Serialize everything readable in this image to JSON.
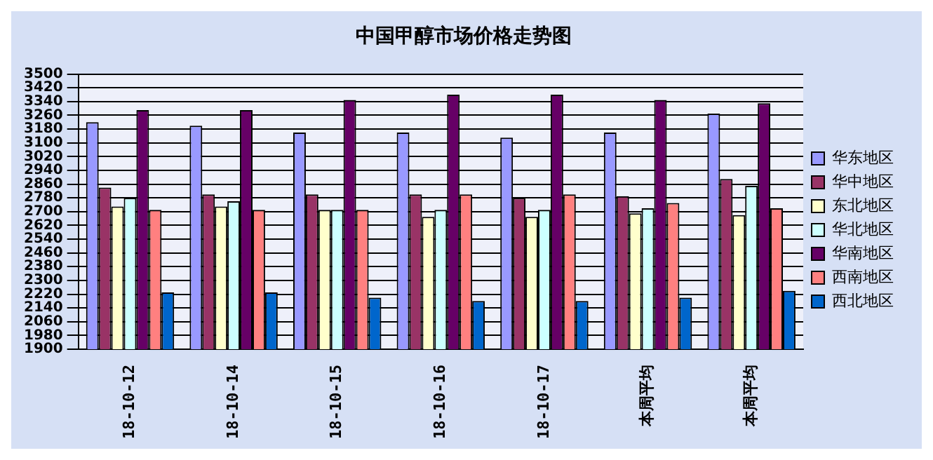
{
  "chart_data": {
    "type": "bar",
    "title": "中国甲醇市场价格走势图",
    "categories": [
      "18-10-12",
      "18-10-14",
      "18-10-15",
      "18-10-16",
      "18-10-17",
      "本周平均",
      "本周平均"
    ],
    "series": [
      {
        "name": "华东地区",
        "color": "#9999ff",
        "values": [
          3220,
          3200,
          3160,
          3160,
          3130,
          3160,
          3270
        ]
      },
      {
        "name": "华中地区",
        "color": "#993366",
        "values": [
          2840,
          2800,
          2800,
          2800,
          2780,
          2790,
          2890
        ]
      },
      {
        "name": "东北地区",
        "color": "#ffffcc",
        "values": [
          2730,
          2730,
          2710,
          2670,
          2670,
          2690,
          2680
        ]
      },
      {
        "name": "华北地区",
        "color": "#ccffff",
        "values": [
          2780,
          2760,
          2710,
          2710,
          2710,
          2720,
          2850
        ]
      },
      {
        "name": "华南地区",
        "color": "#660066",
        "values": [
          3290,
          3290,
          3350,
          3380,
          3380,
          3350,
          3330
        ]
      },
      {
        "name": "西南地区",
        "color": "#ff8080",
        "values": [
          2710,
          2710,
          2710,
          2800,
          2800,
          2750,
          2720
        ]
      },
      {
        "name": "西北地区",
        "color": "#0066cc",
        "values": [
          2230,
          2230,
          2200,
          2180,
          2180,
          2200,
          2240
        ]
      }
    ],
    "ylim": [
      1900,
      3500
    ],
    "yticks": [
      1900,
      1980,
      2060,
      2140,
      2220,
      2300,
      2380,
      2460,
      2540,
      2620,
      2700,
      2780,
      2860,
      2940,
      3020,
      3100,
      3180,
      3260,
      3340,
      3420,
      3500
    ],
    "grid": "y",
    "legend": "right"
  }
}
